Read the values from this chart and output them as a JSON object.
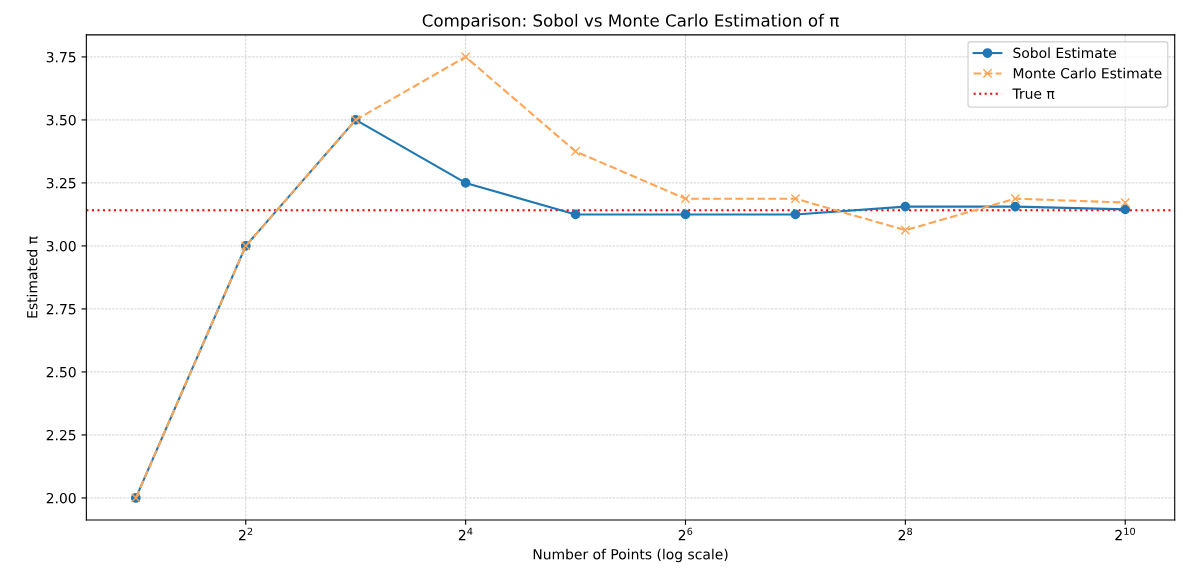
{
  "chart_data": {
    "type": "line",
    "title": "Comparison: Sobol vs Monte Carlo Estimation of π",
    "xlabel": "Number of Points (log scale)",
    "ylabel": "Estimated π",
    "x": [
      2,
      4,
      8,
      16,
      32,
      64,
      128,
      256,
      512,
      1024
    ],
    "series": [
      {
        "name": "Sobol Estimate",
        "color": "#1f77b4",
        "marker": "circle",
        "line_style": "solid",
        "values": [
          2.0,
          3.0,
          3.5,
          3.25,
          3.125,
          3.125,
          3.125,
          3.156,
          3.156,
          3.145
        ]
      },
      {
        "name": "Monte Carlo Estimate",
        "color": "#ffa556",
        "marker": "cross",
        "line_style": "dashed",
        "values": [
          2.0,
          3.0,
          3.5,
          3.75,
          3.375,
          3.1875,
          3.1875,
          3.0625,
          3.1875,
          3.172
        ]
      }
    ],
    "ref_lines": [
      {
        "axis": "y",
        "value": 3.1416,
        "label": "True π",
        "color": "#ff0000",
        "line_style": "dotted"
      }
    ],
    "log": "x",
    "xlim": [
      1.464,
      1399
    ],
    "xticks": [
      {
        "value": 4,
        "label": "2$^{2}$"
      },
      {
        "value": 16,
        "label": "2$^{4}$"
      },
      {
        "value": 64,
        "label": "2$^{6}$"
      },
      {
        "value": 256,
        "label": "2$^{8}$"
      },
      {
        "value": 1024,
        "label": "2$^{10}$"
      }
    ],
    "ylim": [
      1.9125,
      3.8375
    ],
    "yticks": [
      {
        "value": 2.0,
        "label": "2.00"
      },
      {
        "value": 2.25,
        "label": "2.25"
      },
      {
        "value": 2.5,
        "label": "2.50"
      },
      {
        "value": 2.75,
        "label": "2.75"
      },
      {
        "value": 3.0,
        "label": "3.00"
      },
      {
        "value": 3.25,
        "label": "3.25"
      },
      {
        "value": 3.5,
        "label": "3.50"
      },
      {
        "value": 3.75,
        "label": "3.75"
      }
    ],
    "grid": true,
    "legend": "top right"
  }
}
